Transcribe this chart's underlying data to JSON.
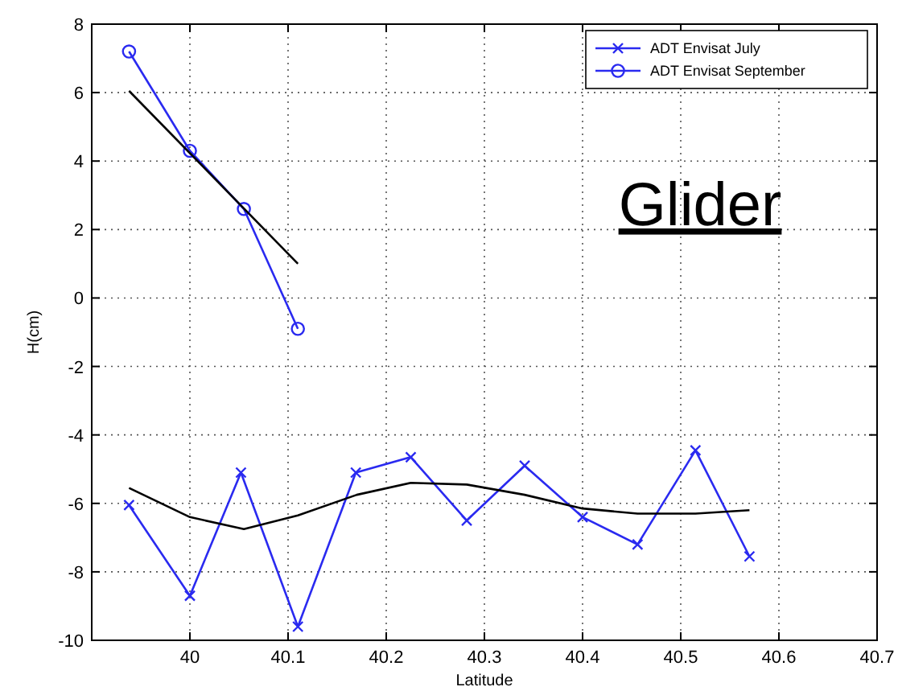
{
  "chart_data": {
    "type": "line",
    "xlabel": "Latitude",
    "ylabel": "H(cm)",
    "xlim": [
      39.9,
      40.7
    ],
    "xticks": [
      40,
      40.1,
      40.2,
      40.3,
      40.4,
      40.5,
      40.6,
      40.7
    ],
    "ylim": [
      -10,
      8
    ],
    "yticks": [
      -10,
      -8,
      -6,
      -4,
      -2,
      0,
      2,
      4,
      6,
      8
    ],
    "grid": true,
    "legend": "top right",
    "annotations": [
      "Glider"
    ],
    "series": [
      {
        "name": "ADT Envisat July",
        "color": "#2a2af0",
        "marker": "cross",
        "x": [
          39.938,
          40.0,
          40.052,
          40.11,
          40.169,
          40.225,
          40.282,
          40.341,
          40.4,
          40.456,
          40.515,
          40.57
        ],
        "values": [
          -6.05,
          -8.7,
          -5.1,
          -9.6,
          -5.1,
          -4.65,
          -6.5,
          -4.9,
          -6.4,
          -7.2,
          -4.45,
          -7.55
        ]
      },
      {
        "name": "ADT Envisat September",
        "color": "#2a2af0",
        "marker": "circle",
        "x": [
          39.938,
          40.0,
          40.055,
          40.11
        ],
        "values": [
          7.2,
          4.3,
          2.6,
          -0.9
        ]
      },
      {
        "color": "#000000",
        "marker": "none",
        "x": [
          39.938,
          40.0,
          40.055,
          40.11,
          40.17,
          40.225,
          40.282,
          40.341,
          40.4,
          40.456,
          40.515,
          40.57
        ],
        "values": [
          -5.55,
          -6.4,
          -6.75,
          -6.35,
          -5.75,
          -5.4,
          -5.45,
          -5.75,
          -6.15,
          -6.3,
          -6.3,
          -6.2
        ]
      },
      {
        "color": "#000000",
        "marker": "none",
        "x": [
          39.938,
          40.11
        ],
        "values": [
          6.05,
          1.0
        ]
      }
    ]
  }
}
